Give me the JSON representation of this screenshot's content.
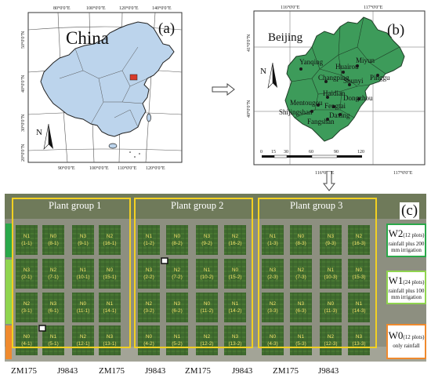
{
  "panel_a": {
    "label": "(a)",
    "country": "China",
    "north": "N",
    "top_ticks": [
      "80°0'0\"E",
      "100°0'0\"E",
      "120°0'0\"E",
      "140°0'0\"E"
    ],
    "bottom_ticks": [
      "90°0'0\"E",
      "100°0'0\"E",
      "110°0'0\"E",
      "120°0'0\"E"
    ],
    "left_ticks": [
      "50°0'0\"N",
      "40°0'0\"N",
      "30°0'0\"N",
      "20°0'0\"N"
    ]
  },
  "panel_b": {
    "label": "(b)",
    "region": "Beijing",
    "north": "N",
    "top_ticks": [
      "116°0'0\"E",
      "117°0'0\"E"
    ],
    "bottom_ticks": [
      "116°0'0\"E",
      "117°0'0\"E"
    ],
    "left_ticks": [
      "41°0'0\"N",
      "40°0'0\"N"
    ],
    "scale": [
      "0",
      "15",
      "30",
      "60",
      "90",
      "120"
    ],
    "districts": [
      "Yanqing",
      "Huairou",
      "Miyun",
      "Changping",
      "Shunyi",
      "Pinggu",
      "Haidian",
      "Dongzhou",
      "Mentougou",
      "Fengtai",
      "Shijingshan",
      "Daxing",
      "Fangshan"
    ]
  },
  "panel_c": {
    "label": "(c)",
    "groups": [
      "Plant group 1",
      "Plant group 2",
      "Plant group 3"
    ],
    "varieties": [
      "ZM175",
      "J9843",
      "ZM175",
      "J9843",
      "ZM175",
      "J9843",
      "ZM175",
      "J9843"
    ],
    "legend": [
      {
        "main": "W2",
        "sub": "(12 plots)",
        "desc1": "rainfall plus 200",
        "desc2": "mm irrigation",
        "color": "#2aa84a"
      },
      {
        "main": "W1",
        "sub": "(24 plots)",
        "desc1": "rainfall plus 100",
        "desc2": "mm irrigation",
        "color": "#8fd44f"
      },
      {
        "main": "W0",
        "sub": "(12 plots)",
        "desc1": "only rainfall",
        "desc2": "",
        "color": "#ef8a2e"
      }
    ],
    "plots": [
      [
        [
          "N1",
          "(1-1)"
        ],
        [
          "N0",
          "(8-1)"
        ],
        [
          "N3",
          "(9-1)"
        ],
        [
          "N2",
          "(16-1)"
        ],
        [
          "N1",
          "(1-2)"
        ],
        [
          "N0",
          "(8-2)"
        ],
        [
          "N3",
          "(9-2)"
        ],
        [
          "N2",
          "(16-2)"
        ],
        [
          "N1",
          "(1-3)"
        ],
        [
          "N0",
          "(8-3)"
        ],
        [
          "N3",
          "(9-3)"
        ],
        [
          "N2",
          "(16-3)"
        ]
      ],
      [
        [
          "N3",
          "(2-1)"
        ],
        [
          "N2",
          "(7-1)"
        ],
        [
          "N1",
          "(10-1)"
        ],
        [
          "N0",
          "(15-1)"
        ],
        [
          "N3",
          "(2-2)"
        ],
        [
          "N2",
          "(7-2)"
        ],
        [
          "N1",
          "(10-2)"
        ],
        [
          "N0",
          "(15-2)"
        ],
        [
          "N3",
          "(2-3)"
        ],
        [
          "N2",
          "(7-3)"
        ],
        [
          "N1",
          "(10-3)"
        ],
        [
          "N0",
          "(15-3)"
        ]
      ],
      [
        [
          "N2",
          "(3-1)"
        ],
        [
          "N3",
          "(6-1)"
        ],
        [
          "N0",
          "(11-1)"
        ],
        [
          "N1",
          "(14-1)"
        ],
        [
          "N2",
          "(3-2)"
        ],
        [
          "N3",
          "(6-2)"
        ],
        [
          "N0",
          "(11-2)"
        ],
        [
          "N1",
          "(14-2)"
        ],
        [
          "N2",
          "(3-3)"
        ],
        [
          "N3",
          "(6-3)"
        ],
        [
          "N0",
          "(11-3)"
        ],
        [
          "N1",
          "(14-3)"
        ]
      ],
      [
        [
          "N0",
          "(4-1)"
        ],
        [
          "N1",
          "(5-1)"
        ],
        [
          "N2",
          "(12-1)"
        ],
        [
          "N3",
          "(13-1)"
        ],
        [
          "N0",
          "(4-2)"
        ],
        [
          "N1",
          "(5-2)"
        ],
        [
          "N2",
          "(12-2)"
        ],
        [
          "N3",
          "(13-2)"
        ],
        [
          "N0",
          "(4-3)"
        ],
        [
          "N1",
          "(5-3)"
        ],
        [
          "N2",
          "(12-3)"
        ],
        [
          "N3",
          "(13-3)"
        ]
      ]
    ]
  },
  "colors": {
    "china_fill": "#bcd4ec",
    "beijing_fill": "#3d9b5a",
    "group_box": "#f2d022",
    "accent_red": "#d83a2a"
  }
}
